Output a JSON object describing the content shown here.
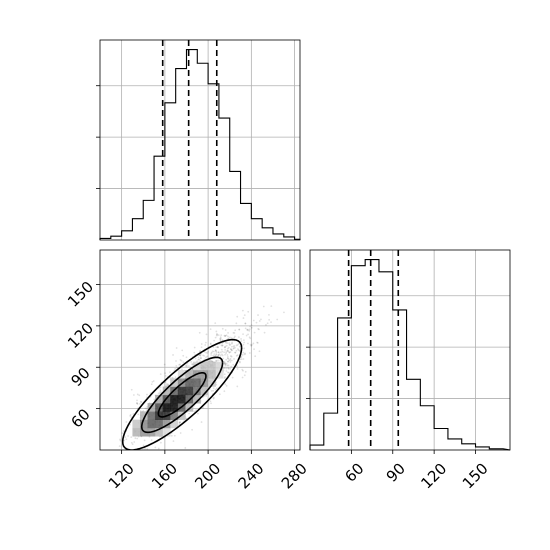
{
  "chart_data": [
    {
      "panel": "hist-x",
      "type": "bar",
      "style": "step",
      "xlim": [
        100,
        285
      ],
      "bins": [
        100,
        110,
        120,
        130,
        140,
        150,
        160,
        170,
        180,
        190,
        200,
        210,
        220,
        230,
        240,
        250,
        260,
        270,
        280,
        290
      ],
      "counts": [
        2,
        5,
        12,
        28,
        52,
        110,
        180,
        225,
        250,
        232,
        205,
        160,
        90,
        48,
        28,
        16,
        8,
        4,
        1
      ],
      "quantiles": [
        158,
        182,
        208
      ],
      "grid": true,
      "y_tick_labels_shown": false
    },
    {
      "panel": "hist-y",
      "type": "bar",
      "style": "step",
      "xlim": [
        30,
        175
      ],
      "xticks": [
        60,
        90,
        120,
        150
      ],
      "bins": [
        30,
        40,
        50,
        60,
        70,
        80,
        90,
        100,
        110,
        120,
        130,
        140,
        150,
        160,
        170
      ],
      "counts": [
        8,
        60,
        215,
        300,
        310,
        290,
        228,
        115,
        72,
        35,
        18,
        10,
        5,
        2
      ],
      "quantiles": [
        58,
        74,
        94
      ],
      "grid": true,
      "y_tick_labels_shown": false
    },
    {
      "panel": "joint",
      "type": "heatmap",
      "xlim": [
        100,
        285
      ],
      "ylim": [
        30,
        175
      ],
      "xticks": [
        120,
        160,
        200,
        240,
        280
      ],
      "yticks": [
        60,
        90,
        120,
        150
      ],
      "density_peak": {
        "x": 168,
        "y": 64
      },
      "correlation": 0.85,
      "contour_levels": [
        "inner",
        "middle",
        "outer"
      ],
      "grid": true
    }
  ]
}
